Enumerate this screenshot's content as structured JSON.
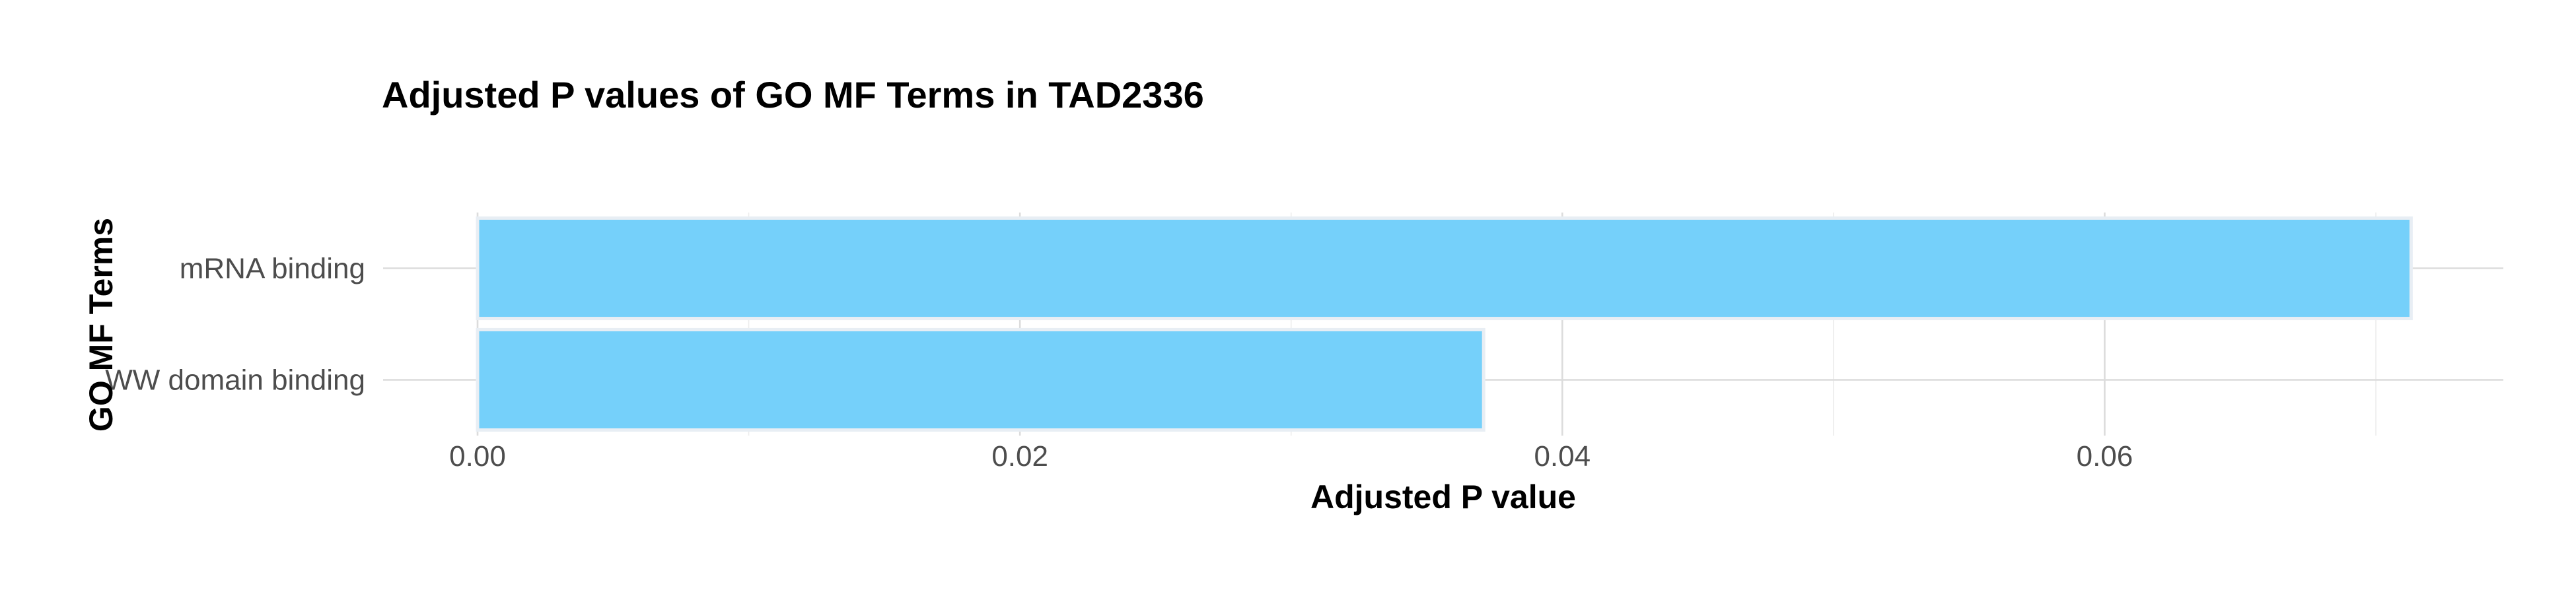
{
  "chart_data": {
    "type": "bar",
    "orientation": "horizontal",
    "title": "Adjusted P values of GO MF Terms in TAD2336",
    "xlabel": "Adjusted P value",
    "ylabel": "GO MF Terms",
    "categories": [
      "mRNA binding",
      "WW domain binding"
    ],
    "values": [
      0.0713,
      0.0371
    ],
    "xlim": [
      0,
      0.075
    ],
    "xticks": [
      "0.00",
      "0.02",
      "0.04",
      "0.06"
    ],
    "grid": true,
    "legend": "none",
    "bar_color": "#75D0FA",
    "bar_outline_color": "#E8EEF4"
  }
}
